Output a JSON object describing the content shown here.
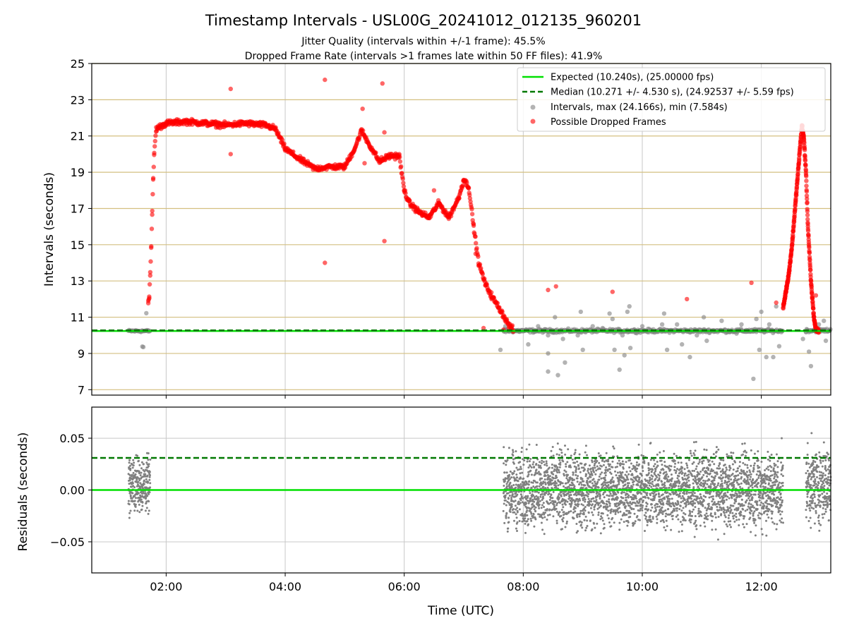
{
  "title": "Timestamp Intervals - USL00G_20241012_012135_960201",
  "subtitle1": "Jitter Quality (intervals within +/-1 frame): 45.5%",
  "subtitle2": "Dropped Frame Rate (intervals >1 frames late within 50 FF files): 41.9%",
  "colors": {
    "expected": "#00e000",
    "median": "#007800",
    "intervals": "#808080",
    "dropped": "#ff0000",
    "ref_lines": "#d4bf80",
    "grid": "#c8c8c8"
  },
  "chart_data": [
    {
      "type": "scatter",
      "ylabel": "Intervals (seconds)",
      "xlim": [
        "00:45",
        "13:10"
      ],
      "ylim": [
        6.7,
        25
      ],
      "yticks": [
        "25",
        "23",
        "21",
        "19",
        "17",
        "15",
        "13",
        "11",
        "9",
        "7"
      ],
      "horizontal_ref_lines": [
        7,
        9,
        11,
        13,
        15,
        17,
        19,
        21,
        23,
        25
      ],
      "grid": true,
      "legend_position": "top-right",
      "legend": [
        "Expected (10.240s), (25.00000 fps)",
        "Median (10.271 +/- 4.530 s), (24.92537 +/- 5.59 fps)",
        "Intervals, max (24.166s), min (7.584s)",
        "Possible Dropped Frames"
      ],
      "expected_y": 10.24,
      "median_y": 10.271,
      "series": [
        {
          "name": "Intervals, max (24.166s), min (7.584s)",
          "dense_segments": [
            {
              "start": "01:22",
              "end": "01:44",
              "y": 10.24,
              "spread": 0.05
            },
            {
              "start": "07:40",
              "end": "12:22",
              "y": 10.25,
              "spread": 0.08
            },
            {
              "start": "12:45",
              "end": "13:10",
              "y": 10.27,
              "spread": 0.08
            }
          ],
          "outliers": [
            [
              "01:36",
              9.38
            ],
            [
              "01:37",
              9.35
            ],
            [
              "01:40",
              11.22
            ],
            [
              "07:37",
              9.2
            ],
            [
              "07:42",
              10.5
            ],
            [
              "08:05",
              9.5
            ],
            [
              "08:15",
              10.5
            ],
            [
              "08:25",
              10.0
            ],
            [
              "08:25",
              9.0
            ],
            [
              "08:25",
              8.0
            ],
            [
              "08:32",
              11.0
            ],
            [
              "08:35",
              7.8
            ],
            [
              "08:40",
              9.8
            ],
            [
              "08:42",
              8.5
            ],
            [
              "08:55",
              10.0
            ],
            [
              "08:58",
              11.3
            ],
            [
              "09:00",
              9.2
            ],
            [
              "09:10",
              10.5
            ],
            [
              "09:20",
              10.4
            ],
            [
              "09:27",
              11.2
            ],
            [
              "09:30",
              10.9
            ],
            [
              "09:32",
              9.2
            ],
            [
              "09:37",
              8.1
            ],
            [
              "09:40",
              10.0
            ],
            [
              "09:42",
              8.9
            ],
            [
              "09:45",
              11.3
            ],
            [
              "09:47",
              11.6
            ],
            [
              "09:48",
              9.3
            ],
            [
              "09:52",
              10.3
            ],
            [
              "10:00",
              10.5
            ],
            [
              "10:20",
              10.6
            ],
            [
              "10:22",
              11.2
            ],
            [
              "10:25",
              9.2
            ],
            [
              "10:35",
              10.6
            ],
            [
              "10:40",
              9.5
            ],
            [
              "10:48",
              8.8
            ],
            [
              "10:55",
              10.0
            ],
            [
              "11:02",
              11.0
            ],
            [
              "11:05",
              9.7
            ],
            [
              "11:20",
              10.8
            ],
            [
              "11:35",
              10.1
            ],
            [
              "11:40",
              10.6
            ],
            [
              "11:52",
              7.6
            ],
            [
              "11:55",
              10.9
            ],
            [
              "11:58",
              9.2
            ],
            [
              "12:00",
              11.3
            ],
            [
              "12:05",
              8.8
            ],
            [
              "12:08",
              10.6
            ],
            [
              "12:12",
              8.8
            ],
            [
              "12:15",
              11.6
            ],
            [
              "12:18",
              9.4
            ],
            [
              "12:42",
              9.8
            ],
            [
              "12:45",
              10.2
            ],
            [
              "12:48",
              9.1
            ],
            [
              "12:50",
              8.3
            ],
            [
              "12:58",
              10.6
            ],
            [
              "13:03",
              10.8
            ],
            [
              "13:05",
              9.7
            ]
          ]
        },
        {
          "name": "Possible Dropped Frames",
          "trend": [
            [
              "01:42",
              11.8
            ],
            [
              "01:43",
              12.2
            ],
            [
              "01:44",
              13.5
            ],
            [
              "01:45",
              15.0
            ],
            [
              "01:46",
              16.8
            ],
            [
              "01:47",
              18.7
            ],
            [
              "01:48",
              20.1
            ],
            [
              "01:50",
              21.4
            ],
            [
              "02:00",
              21.7
            ],
            [
              "02:20",
              21.8
            ],
            [
              "02:40",
              21.7
            ],
            [
              "03:00",
              21.6
            ],
            [
              "03:20",
              21.7
            ],
            [
              "03:40",
              21.6
            ],
            [
              "03:50",
              21.4
            ],
            [
              "04:00",
              20.3
            ],
            [
              "04:15",
              19.7
            ],
            [
              "04:30",
              19.2
            ],
            [
              "04:45",
              19.3
            ],
            [
              "05:00",
              19.3
            ],
            [
              "05:10",
              20.3
            ],
            [
              "05:17",
              21.3
            ],
            [
              "05:25",
              20.5
            ],
            [
              "05:35",
              19.6
            ],
            [
              "05:45",
              19.9
            ],
            [
              "05:55",
              19.9
            ],
            [
              "06:00",
              18.0
            ],
            [
              "06:05",
              17.3
            ],
            [
              "06:15",
              16.8
            ],
            [
              "06:25",
              16.5
            ],
            [
              "06:35",
              17.3
            ],
            [
              "06:45",
              16.5
            ],
            [
              "06:55",
              17.6
            ],
            [
              "07:00",
              18.6
            ],
            [
              "07:05",
              18.2
            ],
            [
              "07:10",
              16.0
            ],
            [
              "07:15",
              14.0
            ],
            [
              "07:22",
              12.8
            ],
            [
              "07:30",
              12.0
            ],
            [
              "07:38",
              11.3
            ],
            [
              "07:45",
              10.6
            ],
            [
              "07:50",
              10.3
            ]
          ],
          "tail_trend": [
            [
              "12:22",
              11.5
            ],
            [
              "12:25",
              12.5
            ],
            [
              "12:28",
              13.5
            ],
            [
              "12:31",
              15.0
            ],
            [
              "12:34",
              17.0
            ],
            [
              "12:37",
              19.0
            ],
            [
              "12:40",
              21.0
            ],
            [
              "12:41",
              21.6
            ],
            [
              "12:43",
              20.8
            ],
            [
              "12:45",
              19.0
            ],
            [
              "12:47",
              16.0
            ],
            [
              "12:50",
              13.0
            ],
            [
              "12:53",
              11.0
            ],
            [
              "12:55",
              10.3
            ],
            [
              "12:58",
              10.25
            ]
          ],
          "outliers": [
            [
              "01:42",
              11.9
            ],
            [
              "03:05",
              23.6
            ],
            [
              "03:05",
              20.0
            ],
            [
              "04:40",
              24.1
            ],
            [
              "04:40",
              14.0
            ],
            [
              "05:18",
              22.5
            ],
            [
              "05:20",
              19.5
            ],
            [
              "05:38",
              23.9
            ],
            [
              "05:40",
              21.2
            ],
            [
              "05:40",
              15.2
            ],
            [
              "06:30",
              18.0
            ],
            [
              "07:12",
              14.5
            ],
            [
              "07:20",
              10.4
            ],
            [
              "07:28",
              12.0
            ],
            [
              "07:40",
              10.3
            ],
            [
              "08:25",
              12.5
            ],
            [
              "08:33",
              12.7
            ],
            [
              "09:30",
              12.4
            ],
            [
              "10:45",
              12.0
            ],
            [
              "11:50",
              12.9
            ],
            [
              "12:15",
              11.8
            ],
            [
              "12:55",
              12.2
            ]
          ]
        }
      ]
    },
    {
      "type": "scatter",
      "xlabel": "Time (UTC)",
      "ylabel": "Residuals (seconds)",
      "xlim": [
        "00:45",
        "13:10"
      ],
      "ylim": [
        -0.08,
        0.08
      ],
      "yticks": [
        "0.05",
        "0.00",
        "−0.05"
      ],
      "xticks": [
        "02:00",
        "04:00",
        "06:00",
        "08:00",
        "10:00",
        "12:00"
      ],
      "grid": true,
      "zero_line": 0.0,
      "median_residual": 0.031,
      "clusters": [
        {
          "start": "01:22",
          "end": "01:44",
          "center": 0.005,
          "spread": 0.022
        },
        {
          "start": "07:40",
          "end": "12:22",
          "center": 0.0,
          "spread": 0.03
        },
        {
          "start": "12:45",
          "end": "13:10",
          "center": 0.005,
          "spread": 0.03
        }
      ]
    }
  ]
}
